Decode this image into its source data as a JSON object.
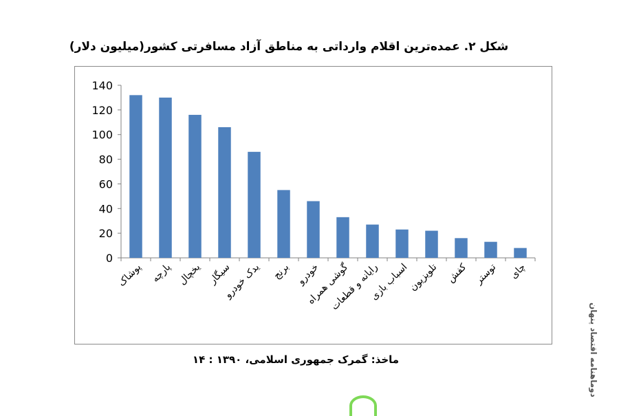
{
  "chart_data": {
    "type": "bar",
    "title": "شکل ۲. عمده‌ترین اقلام وارداتی به مناطق آزاد مسافرتی کشور(میلیون دلار)",
    "categories": [
      "پوشاک",
      "پارچه",
      "یخچال",
      "سیگار",
      "یدک خودرو",
      "برنج",
      "خودرو",
      "گوشی همراه",
      "رایانه و قطعات",
      "اسباب بازی",
      "تلویزیون",
      "کفش",
      "توستر",
      "چای"
    ],
    "values": [
      132,
      130,
      116,
      106,
      86,
      55,
      46,
      33,
      27,
      23,
      22,
      16,
      13,
      8
    ],
    "ylim": [
      0,
      140
    ],
    "yticks": [
      0,
      20,
      40,
      60,
      80,
      100,
      120,
      140
    ],
    "grid": false,
    "bar_color": "#4f81bd"
  },
  "source": "ماخذ: گمرک جمهوری اسلامی، ۱۳۹۰ : ۱۴",
  "watermark": "دوماهنامه اقتصاد پنهان"
}
